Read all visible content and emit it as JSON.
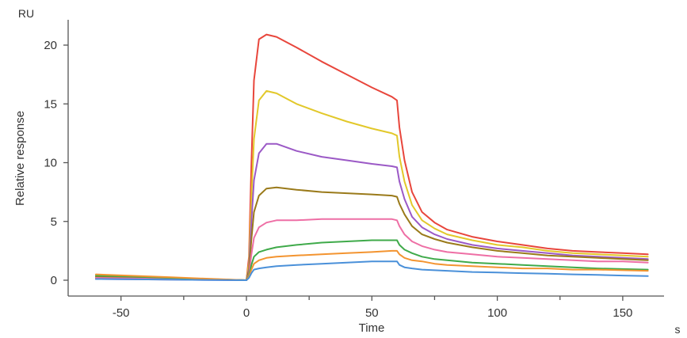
{
  "chart_data": {
    "type": "line",
    "title": "",
    "xlabel": "Time",
    "x_unit": "s",
    "ylabel": "Relative response",
    "y_unit": "RU",
    "xlim": [
      -62,
      166
    ],
    "ylim": [
      -1.2,
      22
    ],
    "xticks": [
      -50,
      0,
      50,
      100,
      150
    ],
    "yticks": [
      0,
      5,
      10,
      15,
      20
    ],
    "grid": false,
    "legend": "none",
    "phases": {
      "injection_start": 0,
      "injection_end": 60
    },
    "series": [
      {
        "color": "#e8463c",
        "points": [
          [
            -60,
            0.2
          ],
          [
            -30,
            0.1
          ],
          [
            0,
            0
          ],
          [
            1,
            2
          ],
          [
            2,
            10
          ],
          [
            3,
            17
          ],
          [
            5,
            20.5
          ],
          [
            8,
            20.9
          ],
          [
            12,
            20.7
          ],
          [
            20,
            19.8
          ],
          [
            30,
            18.6
          ],
          [
            40,
            17.5
          ],
          [
            50,
            16.4
          ],
          [
            58,
            15.6
          ],
          [
            60,
            15.3
          ],
          [
            61,
            13
          ],
          [
            63,
            10.2
          ],
          [
            66,
            7.5
          ],
          [
            70,
            5.8
          ],
          [
            75,
            4.9
          ],
          [
            80,
            4.3
          ],
          [
            90,
            3.7
          ],
          [
            100,
            3.3
          ],
          [
            110,
            3
          ],
          [
            120,
            2.7
          ],
          [
            130,
            2.5
          ],
          [
            140,
            2.4
          ],
          [
            150,
            2.3
          ],
          [
            160,
            2.2
          ]
        ]
      },
      {
        "color": "#e2c82a",
        "points": [
          [
            -60,
            0.15
          ],
          [
            -30,
            0.1
          ],
          [
            0,
            0
          ],
          [
            1,
            1.5
          ],
          [
            2,
            7
          ],
          [
            3,
            12
          ],
          [
            5,
            15.3
          ],
          [
            8,
            16.1
          ],
          [
            12,
            15.9
          ],
          [
            20,
            15
          ],
          [
            30,
            14.2
          ],
          [
            40,
            13.5
          ],
          [
            50,
            12.9
          ],
          [
            58,
            12.5
          ],
          [
            60,
            12.3
          ],
          [
            61,
            10.5
          ],
          [
            63,
            8.4
          ],
          [
            66,
            6.4
          ],
          [
            70,
            5.1
          ],
          [
            75,
            4.4
          ],
          [
            80,
            3.9
          ],
          [
            90,
            3.4
          ],
          [
            100,
            3
          ],
          [
            110,
            2.8
          ],
          [
            120,
            2.5
          ],
          [
            130,
            2.3
          ],
          [
            140,
            2.2
          ],
          [
            150,
            2.1
          ],
          [
            160,
            2
          ]
        ]
      },
      {
        "color": "#9b59c6",
        "points": [
          [
            -60,
            0.1
          ],
          [
            -30,
            0.05
          ],
          [
            0,
            0
          ],
          [
            1,
            1
          ],
          [
            2,
            5
          ],
          [
            3,
            8.5
          ],
          [
            5,
            10.8
          ],
          [
            8,
            11.6
          ],
          [
            12,
            11.6
          ],
          [
            20,
            11
          ],
          [
            30,
            10.5
          ],
          [
            40,
            10.2
          ],
          [
            50,
            9.9
          ],
          [
            58,
            9.7
          ],
          [
            60,
            9.6
          ],
          [
            61,
            8.4
          ],
          [
            63,
            6.9
          ],
          [
            66,
            5.4
          ],
          [
            70,
            4.5
          ],
          [
            75,
            3.9
          ],
          [
            80,
            3.5
          ],
          [
            90,
            3
          ],
          [
            100,
            2.7
          ],
          [
            110,
            2.5
          ],
          [
            120,
            2.3
          ],
          [
            130,
            2.1
          ],
          [
            140,
            2
          ],
          [
            150,
            1.9
          ],
          [
            160,
            1.8
          ]
        ]
      },
      {
        "color": "#9a7a1a",
        "points": [
          [
            -60,
            0.3
          ],
          [
            -30,
            0.15
          ],
          [
            0,
            0
          ],
          [
            1,
            0.8
          ],
          [
            2,
            3.5
          ],
          [
            3,
            5.8
          ],
          [
            5,
            7.2
          ],
          [
            8,
            7.8
          ],
          [
            12,
            7.9
          ],
          [
            20,
            7.7
          ],
          [
            30,
            7.5
          ],
          [
            40,
            7.4
          ],
          [
            50,
            7.3
          ],
          [
            58,
            7.2
          ],
          [
            60,
            7.1
          ],
          [
            61,
            6.5
          ],
          [
            63,
            5.6
          ],
          [
            66,
            4.6
          ],
          [
            70,
            3.9
          ],
          [
            75,
            3.5
          ],
          [
            80,
            3.2
          ],
          [
            90,
            2.8
          ],
          [
            100,
            2.5
          ],
          [
            110,
            2.3
          ],
          [
            120,
            2.1
          ],
          [
            130,
            2
          ],
          [
            140,
            1.9
          ],
          [
            150,
            1.8
          ],
          [
            160,
            1.7
          ]
        ]
      },
      {
        "color": "#ee6fa5",
        "points": [
          [
            -60,
            0.2
          ],
          [
            -30,
            0.1
          ],
          [
            0,
            0
          ],
          [
            1,
            0.5
          ],
          [
            2,
            2.2
          ],
          [
            3,
            3.6
          ],
          [
            5,
            4.5
          ],
          [
            8,
            4.9
          ],
          [
            12,
            5.1
          ],
          [
            20,
            5.1
          ],
          [
            30,
            5.2
          ],
          [
            40,
            5.2
          ],
          [
            50,
            5.2
          ],
          [
            58,
            5.2
          ],
          [
            60,
            5.1
          ],
          [
            61,
            4.6
          ],
          [
            63,
            3.9
          ],
          [
            66,
            3.3
          ],
          [
            70,
            2.9
          ],
          [
            75,
            2.6
          ],
          [
            80,
            2.4
          ],
          [
            90,
            2.2
          ],
          [
            100,
            2
          ],
          [
            110,
            1.9
          ],
          [
            120,
            1.8
          ],
          [
            130,
            1.7
          ],
          [
            140,
            1.6
          ],
          [
            150,
            1.6
          ],
          [
            160,
            1.5
          ]
        ]
      },
      {
        "color": "#3faa4a",
        "points": [
          [
            -60,
            0.4
          ],
          [
            -30,
            0.2
          ],
          [
            0,
            0
          ],
          [
            1,
            0.4
          ],
          [
            2,
            1.3
          ],
          [
            3,
            2
          ],
          [
            5,
            2.4
          ],
          [
            8,
            2.6
          ],
          [
            12,
            2.8
          ],
          [
            20,
            3
          ],
          [
            30,
            3.2
          ],
          [
            40,
            3.3
          ],
          [
            50,
            3.4
          ],
          [
            58,
            3.4
          ],
          [
            60,
            3.4
          ],
          [
            61,
            3
          ],
          [
            63,
            2.6
          ],
          [
            66,
            2.3
          ],
          [
            70,
            2
          ],
          [
            75,
            1.8
          ],
          [
            80,
            1.7
          ],
          [
            90,
            1.5
          ],
          [
            100,
            1.4
          ],
          [
            110,
            1.3
          ],
          [
            120,
            1.2
          ],
          [
            130,
            1.1
          ],
          [
            140,
            1
          ],
          [
            150,
            0.95
          ],
          [
            160,
            0.9
          ]
        ]
      },
      {
        "color": "#f39430",
        "points": [
          [
            -60,
            0.5
          ],
          [
            -30,
            0.25
          ],
          [
            0,
            0
          ],
          [
            1,
            0.3
          ],
          [
            2,
            0.9
          ],
          [
            3,
            1.4
          ],
          [
            5,
            1.7
          ],
          [
            8,
            1.9
          ],
          [
            12,
            2
          ],
          [
            20,
            2.1
          ],
          [
            30,
            2.2
          ],
          [
            40,
            2.3
          ],
          [
            50,
            2.4
          ],
          [
            58,
            2.5
          ],
          [
            60,
            2.5
          ],
          [
            61,
            2.2
          ],
          [
            63,
            1.9
          ],
          [
            66,
            1.7
          ],
          [
            70,
            1.6
          ],
          [
            75,
            1.4
          ],
          [
            80,
            1.3
          ],
          [
            90,
            1.2
          ],
          [
            100,
            1.1
          ],
          [
            110,
            1
          ],
          [
            120,
            1
          ],
          [
            130,
            0.9
          ],
          [
            140,
            0.9
          ],
          [
            150,
            0.85
          ],
          [
            160,
            0.8
          ]
        ]
      },
      {
        "color": "#4a90d9",
        "points": [
          [
            -60,
            0.1
          ],
          [
            -30,
            0.05
          ],
          [
            0,
            0
          ],
          [
            1,
            0.2
          ],
          [
            2,
            0.6
          ],
          [
            3,
            0.9
          ],
          [
            5,
            1
          ],
          [
            8,
            1.1
          ],
          [
            12,
            1.2
          ],
          [
            20,
            1.3
          ],
          [
            30,
            1.4
          ],
          [
            40,
            1.5
          ],
          [
            50,
            1.6
          ],
          [
            58,
            1.6
          ],
          [
            60,
            1.6
          ],
          [
            61,
            1.3
          ],
          [
            63,
            1.1
          ],
          [
            66,
            1
          ],
          [
            70,
            0.9
          ],
          [
            75,
            0.85
          ],
          [
            80,
            0.8
          ],
          [
            90,
            0.7
          ],
          [
            100,
            0.65
          ],
          [
            110,
            0.6
          ],
          [
            120,
            0.55
          ],
          [
            130,
            0.5
          ],
          [
            140,
            0.45
          ],
          [
            150,
            0.4
          ],
          [
            160,
            0.35
          ]
        ]
      }
    ]
  }
}
